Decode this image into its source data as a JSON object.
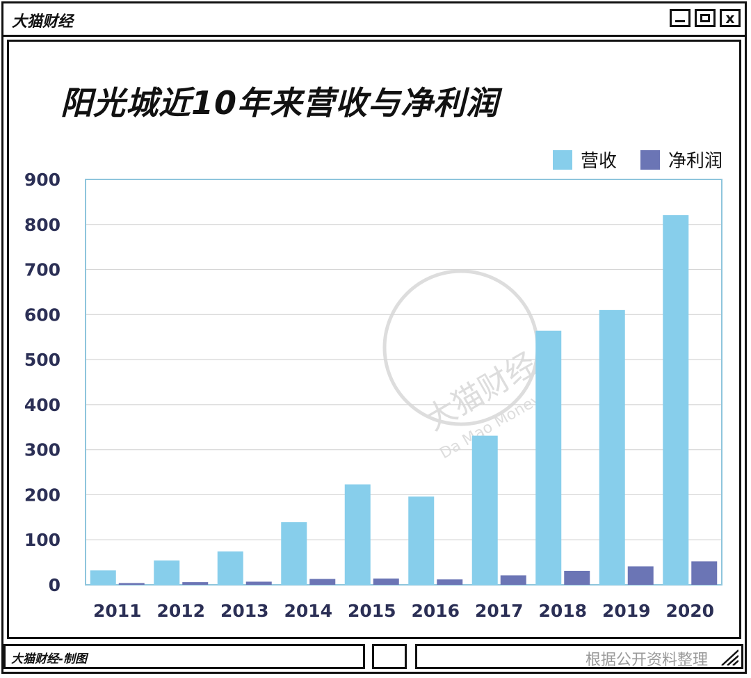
{
  "window": {
    "app_title": "大猫财经",
    "buttons": [
      "minimize",
      "maximize",
      "close"
    ],
    "close_glyph": "x"
  },
  "footer": {
    "left_text": "大猫财经-制图",
    "right_text": "根据公开资料整理"
  },
  "watermark": {
    "cn": "大猫财经",
    "en": "Da Mao Money"
  },
  "colors": {
    "revenue": "#87CEEB",
    "profit": "#6B75B5",
    "axis_text": "#2B2F55",
    "grid": "#d6d6d6",
    "plot_border": "#8ec5dc"
  },
  "chart_data": {
    "type": "bar",
    "title": "阳光城近10年来营收与净利润",
    "xlabel": "",
    "ylabel": "",
    "ylim": [
      0,
      900
    ],
    "yticks": [
      0,
      100,
      200,
      300,
      400,
      500,
      600,
      700,
      800,
      900
    ],
    "categories": [
      "2011",
      "2012",
      "2013",
      "2014",
      "2015",
      "2016",
      "2017",
      "2018",
      "2019",
      "2020"
    ],
    "series": [
      {
        "name": "营收",
        "values": [
          32,
          54,
          74,
          139,
          223,
          196,
          331,
          564,
          610,
          821
        ]
      },
      {
        "name": "净利润",
        "values": [
          4,
          6,
          7,
          13,
          14,
          12,
          21,
          31,
          41,
          52
        ]
      }
    ],
    "legend_position": "top-right",
    "grid": true
  }
}
